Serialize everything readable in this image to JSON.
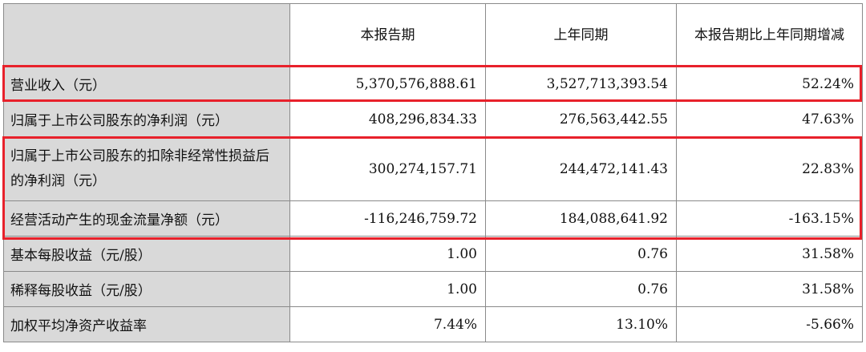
{
  "table": {
    "headers": [
      "",
      "本报告期",
      "上年同期",
      "本报告期比上年同期增减"
    ],
    "rows": [
      {
        "label": "营业收入（元）",
        "current": "5,370,576,888.61",
        "previous": "3,527,713,393.54",
        "change": "52.24%",
        "highlight": true
      },
      {
        "label": "归属于上市公司股东的净利润（元）",
        "current": "408,296,834.33",
        "previous": "276,563,442.55",
        "change": "47.63%",
        "highlight": false
      },
      {
        "label": "归属于上市公司股东的扣除非经常性损益后的净利润（元）",
        "current": "300,274,157.71",
        "previous": "244,472,141.43",
        "change": "22.83%",
        "highlight": true
      },
      {
        "label": "经营活动产生的现金流量净额（元）",
        "current": "-116,246,759.72",
        "previous": "184,088,641.92",
        "change": "-163.15%",
        "highlight": true
      },
      {
        "label": "基本每股收益（元/股）",
        "current": "1.00",
        "previous": "0.76",
        "change": "31.58%",
        "highlight": false
      },
      {
        "label": "稀释每股收益（元/股）",
        "current": "1.00",
        "previous": "0.76",
        "change": "31.58%",
        "highlight": false
      },
      {
        "label": "加权平均净资产收益率",
        "current": "7.44%",
        "previous": "13.10%",
        "change": "-5.66%",
        "highlight": false
      }
    ]
  },
  "highlight_color": "#e8212b",
  "label_bg": "#d9d9d9"
}
